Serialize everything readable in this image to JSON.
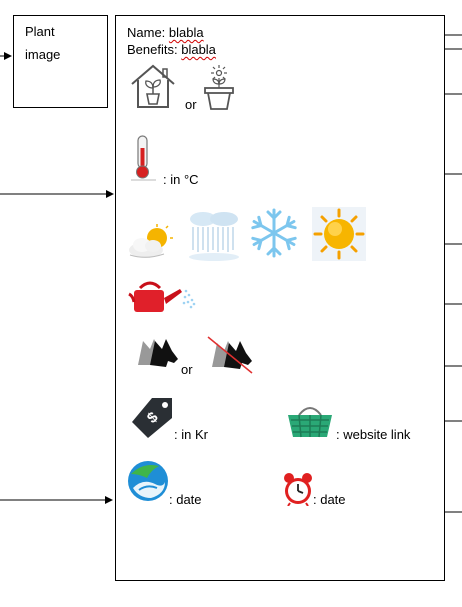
{
  "plant_box": {
    "label_line1": "Plant",
    "label_line2": "image"
  },
  "card": {
    "name_label": "Name:",
    "name_value": "blabla",
    "benefits_label": "Benefits:",
    "benefits_value": "blabla",
    "or_indoor_outdoor": "or",
    "temperature_unit": ": in °C",
    "or_pets": "or",
    "price_unit": ": in Kr",
    "shop_link": ": website link",
    "harvest_date": ": date",
    "reminder_date": ": date"
  },
  "icons": [
    "house-plant-icon",
    "outdoor-pot-icon",
    "thermometer-icon",
    "cloudy-sun-icon",
    "rain-icon",
    "snowflake-icon",
    "sun-icon",
    "watering-can-icon",
    "pet-safe-icon",
    "pet-unsafe-icon",
    "price-tag-icon",
    "shopping-basket-icon",
    "globe-icon",
    "alarm-clock-icon"
  ],
  "colors": {
    "thermometer_blue": "#1f6fd1",
    "watering_can_red": "#e0202a",
    "basket_green": "#2aa876",
    "alarm_red": "#e02020",
    "sun_orange": "#f5a000"
  }
}
